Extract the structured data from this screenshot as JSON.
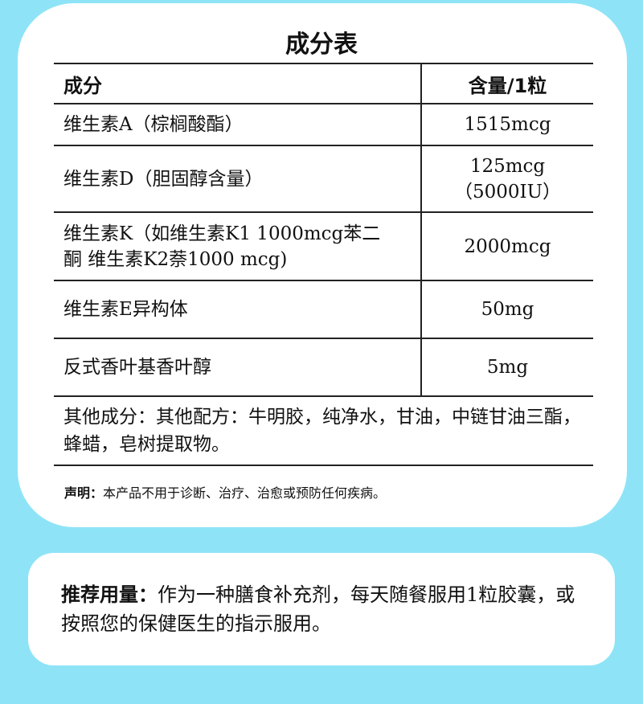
{
  "title": "成分表",
  "table": {
    "headers": [
      "成分",
      "含量/1粒"
    ],
    "rows": [
      {
        "name": "维生素A（棕榈酸酯）",
        "value": "1515mcg"
      },
      {
        "name": "维生素D（胆固醇含量）",
        "value": "125mcg （5000IU）"
      },
      {
        "name": "维生素K（如维生素K1 1000mcg苯二酮 维生素K2萘1000 mcg)",
        "value": "2000mcg"
      },
      {
        "name": "维生素E异构体",
        "value": "50mg"
      },
      {
        "name": "反式香叶基香叶醇",
        "value": "5mg"
      }
    ],
    "other": "其他成分：其他配方：牛明胶，纯净水，甘油，中链甘油三酯，蜂蜡，皂树提取物。"
  },
  "note": {
    "label": "声明：",
    "text": "本产品不用于诊断、治疗、治愈或预防任何疾病。"
  },
  "dosage": {
    "label": "推荐用量：",
    "text": "作为一种膳食补充剂，每天随餐服用1粒胶囊，或按照您的保健医生的指示服用。"
  }
}
